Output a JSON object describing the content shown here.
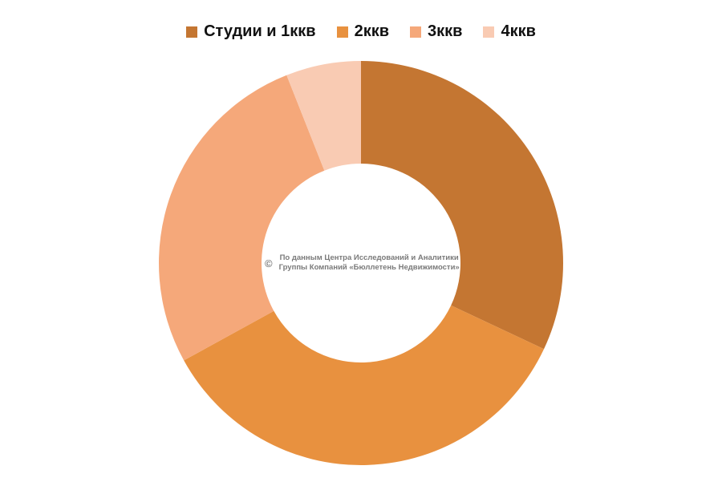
{
  "chart_data": {
    "type": "pie",
    "donut": true,
    "categories": [
      "Студии и 1ккв",
      "2ккв",
      "3ккв",
      "4ккв"
    ],
    "values": [
      32,
      35,
      27,
      6
    ],
    "colors": [
      "#c47632",
      "#e8913f",
      "#f5a87a",
      "#f9cbb3"
    ],
    "legend_placement": "top-center",
    "title": ""
  },
  "watermark": {
    "symbol": "©",
    "line1": "По данным Центра Исследований и Аналитики",
    "line2": "Группы Компаний «Бюллетень Недвижимости»"
  }
}
